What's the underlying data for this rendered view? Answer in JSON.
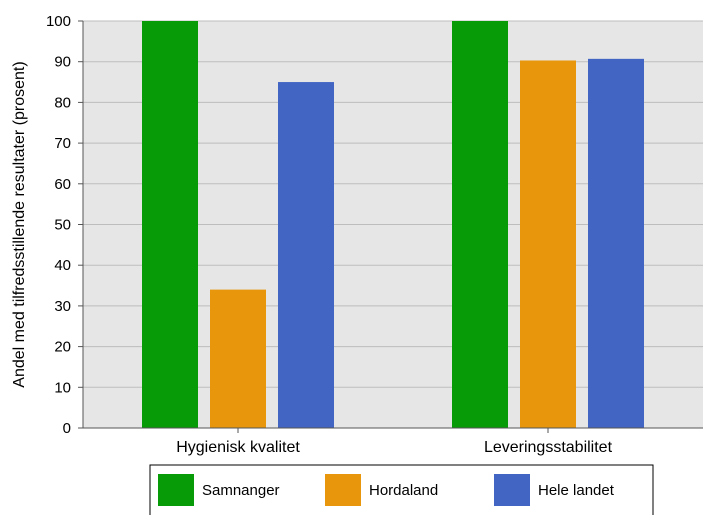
{
  "chart_data": {
    "type": "bar",
    "categories": [
      "Hygienisk kvalitet",
      "Leveringsstabilitet"
    ],
    "series": [
      {
        "name": "Samnanger",
        "values": [
          100,
          100
        ],
        "color": "#089b08"
      },
      {
        "name": "Hordaland",
        "values": [
          34,
          90.3
        ],
        "color": "#e8960c"
      },
      {
        "name": "Hele landet",
        "values": [
          85,
          90.7
        ],
        "color": "#4265c4"
      }
    ],
    "title": "",
    "xlabel": "",
    "ylabel": "Andel med tilfredsstillende resultater (prosent)",
    "ylim": [
      0,
      100
    ],
    "yticks": [
      0,
      10,
      20,
      30,
      40,
      50,
      60,
      70,
      80,
      90,
      100
    ],
    "grid": true,
    "legend_position": "bottom",
    "plot_background": "#e6e6e6"
  }
}
